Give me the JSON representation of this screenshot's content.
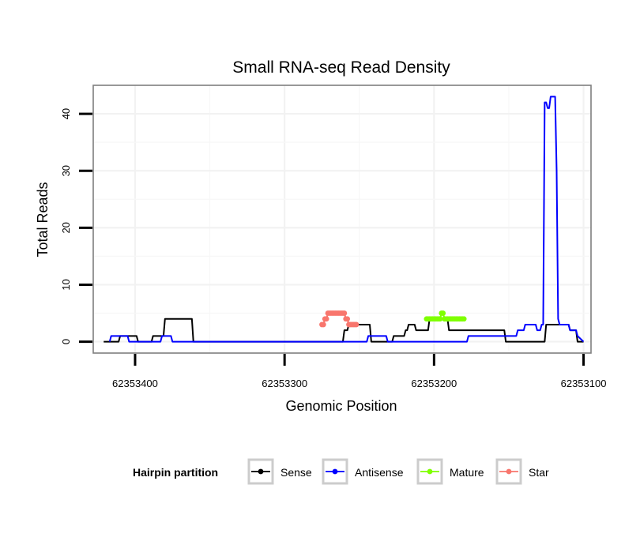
{
  "chart_data": {
    "type": "line",
    "title": "Small RNA-seq Read Density",
    "xlabel": "Genomic Position",
    "ylabel": "Total Reads",
    "x_reversed": true,
    "xlim": [
      62353428,
      62353095
    ],
    "ylim": [
      -2,
      45
    ],
    "x_ticks": [
      62353400,
      62353300,
      62353200,
      62353100
    ],
    "x_tick_labels": [
      "62353400",
      "62353300",
      "62353200",
      "62353100"
    ],
    "y_ticks": [
      0,
      10,
      20,
      30,
      40
    ],
    "y_tick_labels": [
      "0",
      "10",
      "20",
      "30",
      "40"
    ],
    "legend": {
      "title": "Hairpin partition",
      "position": "bottom",
      "entries": [
        {
          "name": "Sense",
          "color": "#000000"
        },
        {
          "name": "Antisense",
          "color": "#0000ff"
        },
        {
          "name": "Mature",
          "color": "#7fff00"
        },
        {
          "name": "Star",
          "color": "#f8766d"
        }
      ]
    },
    "series": [
      {
        "name": "Sense",
        "color": "#000000",
        "markers": false,
        "x": [
          62353421,
          62353411,
          62353410,
          62353399,
          62353398,
          62353389,
          62353388,
          62353381,
          62353380,
          62353362,
          62353361,
          62353261,
          62353260,
          62353258,
          62353257,
          62353243,
          62353242,
          62353228,
          62353227,
          62353226,
          62353225,
          62353220,
          62353219,
          62353218,
          62353217,
          62353213,
          62353212,
          62353204,
          62353203,
          62353191,
          62353190,
          62353177,
          62353176,
          62353153,
          62353152,
          62353126,
          62353125,
          62353110,
          62353109,
          62353105,
          62353104,
          62353100
        ],
        "y": [
          0,
          0,
          1,
          1,
          0,
          0,
          1,
          1,
          4,
          4,
          0,
          0,
          2,
          2,
          3,
          3,
          0,
          0,
          1,
          1,
          1,
          1,
          2,
          2,
          3,
          3,
          2,
          2,
          4,
          4,
          2,
          2,
          2,
          2,
          0,
          0,
          3,
          3,
          2,
          2,
          0,
          0
        ]
      },
      {
        "name": "Antisense",
        "color": "#0000ff",
        "markers": false,
        "x": [
          62353417,
          62353416,
          62353405,
          62353404,
          62353383,
          62353382,
          62353376,
          62353375,
          62353245,
          62353244,
          62353232,
          62353231,
          62353178,
          62353177,
          62353162,
          62353161,
          62353145,
          62353144,
          62353140,
          62353139,
          62353132,
          62353131,
          62353129,
          62353128,
          62353127,
          62353126,
          62353125,
          62353124,
          62353123,
          62353122,
          62353121,
          62353120,
          62353119,
          62353118,
          62353117,
          62353116,
          62353115,
          62353110,
          62353109,
          62353105,
          62353104,
          62353100
        ],
        "y": [
          0,
          1,
          1,
          0,
          0,
          1,
          1,
          0,
          0,
          1,
          1,
          0,
          0,
          1,
          1,
          1,
          1,
          2,
          2,
          3,
          3,
          2,
          2,
          3,
          3,
          42,
          42,
          41,
          41,
          43,
          43,
          43,
          43,
          30,
          4,
          3,
          3,
          3,
          2,
          2,
          1,
          0
        ]
      },
      {
        "name": "Mature",
        "color": "#7fff00",
        "markers": true,
        "x": [
          62353205,
          62353204,
          62353203,
          62353202,
          62353201,
          62353200,
          62353199,
          62353198,
          62353197,
          62353196,
          62353195,
          62353194,
          62353193,
          62353192,
          62353191,
          62353190,
          62353189,
          62353188,
          62353187,
          62353186,
          62353185,
          62353184,
          62353183,
          62353182,
          62353181,
          62353180
        ],
        "y": [
          4,
          4,
          4,
          4,
          4,
          4,
          4,
          4,
          4,
          4,
          5,
          5,
          4,
          4,
          4,
          4,
          4,
          4,
          4,
          4,
          4,
          4,
          4,
          4,
          4,
          4
        ]
      },
      {
        "name": "Star",
        "color": "#f8766d",
        "markers": true,
        "x": [
          62353275,
          62353274,
          62353273,
          62353272,
          62353271,
          62353270,
          62353269,
          62353268,
          62353267,
          62353266,
          62353265,
          62353264,
          62353263,
          62353262,
          62353261,
          62353260,
          62353259,
          62353258,
          62353257,
          62353256,
          62353255,
          62353254,
          62353253,
          62353252
        ],
        "y": [
          3,
          3,
          4,
          4,
          5,
          5,
          5,
          5,
          5,
          5,
          5,
          5,
          5,
          5,
          5,
          5,
          4,
          4,
          3,
          3,
          3,
          3,
          3,
          3
        ]
      }
    ]
  }
}
